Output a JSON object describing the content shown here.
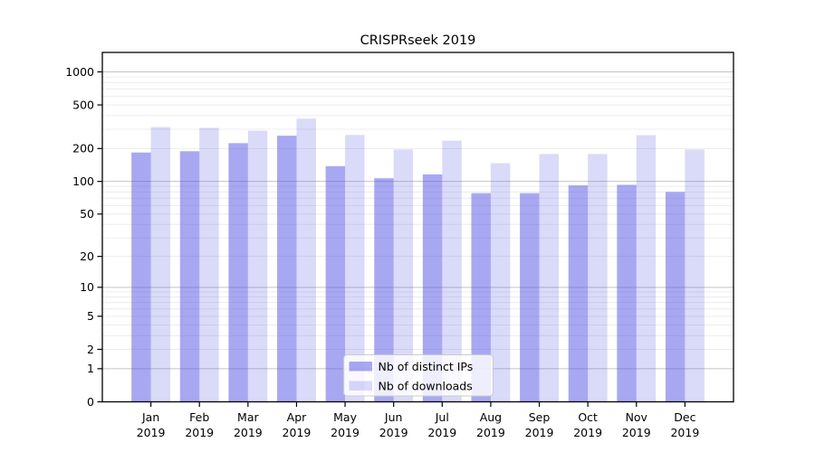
{
  "chart_data": {
    "type": "bar",
    "title": "CRISPRseek 2019",
    "x": {
      "months": [
        "Jan",
        "Feb",
        "Mar",
        "Apr",
        "May",
        "Jun",
        "Jul",
        "Aug",
        "Sep",
        "Oct",
        "Nov",
        "Dec"
      ],
      "year": "2019"
    },
    "series": [
      {
        "name": "Nb of distinct IPs",
        "base_color": "#5151e5",
        "fill": "rgba(81,81,229,0.50)",
        "values": [
          184,
          189,
          224,
          262,
          138,
          107,
          116,
          78,
          78,
          92,
          93,
          80
        ]
      },
      {
        "name": "Nb of downloads",
        "base_color": "#5151e5",
        "fill": "rgba(81,81,229,0.21)",
        "values": [
          314,
          309,
          291,
          375,
          266,
          196,
          236,
          147,
          178,
          178,
          265,
          196
        ]
      }
    ],
    "y_axis": {
      "scale": "log1p",
      "tick_values": [
        0,
        1,
        2,
        5,
        10,
        20,
        50,
        100,
        200,
        500,
        1000
      ],
      "range": [
        0,
        1000
      ]
    },
    "grid": {
      "show": true,
      "major_color": "#c4c4c4",
      "minor_color": "#ececec"
    },
    "legend": {
      "position": "lower center inside"
    },
    "spine_color": "#000000"
  }
}
